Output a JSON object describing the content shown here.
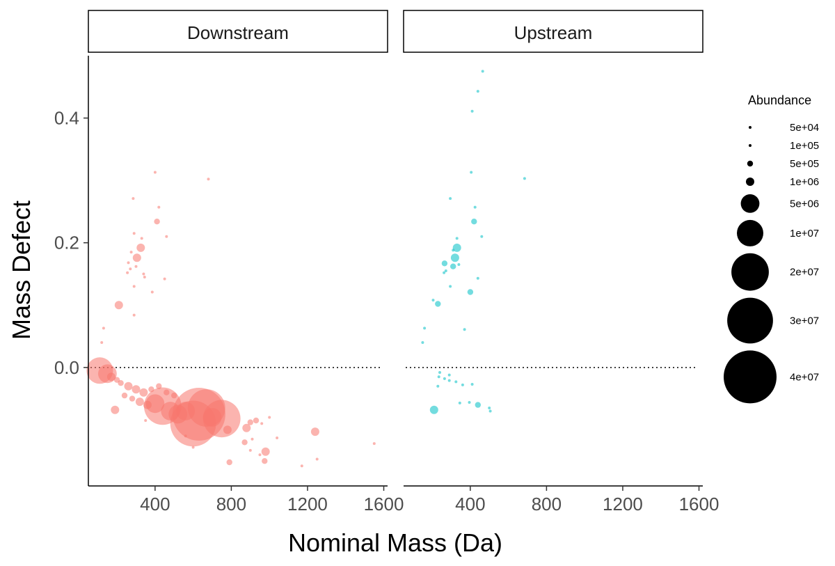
{
  "chart_data": {
    "type": "scatter",
    "xlabel": "Nominal Mass (Da)",
    "ylabel": "Mass Defect",
    "xlim": [
      50,
      1620
    ],
    "ylim": [
      -0.19,
      0.5
    ],
    "xticks": [
      400,
      800,
      1200,
      1600
    ],
    "yticks": [
      0.0,
      0.2,
      0.4
    ],
    "ytick_labels": [
      "0.0",
      "0.2",
      "0.4"
    ],
    "reference_line": {
      "y": 0,
      "style": "dotted"
    },
    "legend": {
      "title": "Abundance",
      "position": "right",
      "entries": [
        {
          "label": "5e+04",
          "value": 50000
        },
        {
          "label": "1e+05",
          "value": 100000
        },
        {
          "label": "5e+05",
          "value": 500000
        },
        {
          "label": "1e+06",
          "value": 1000000
        },
        {
          "label": "5e+06",
          "value": 5000000
        },
        {
          "label": "1e+07",
          "value": 10000000
        },
        {
          "label": "2e+07",
          "value": 20000000
        },
        {
          "label": "3e+07",
          "value": 30000000
        },
        {
          "label": "4e+07",
          "value": 40000000
        }
      ]
    },
    "panels": [
      {
        "label": "Downstream",
        "color": "#F8766D",
        "points": [
          [
            400,
            0.313,
            50000
          ],
          [
            680,
            0.302,
            50000
          ],
          [
            285,
            0.271,
            50000
          ],
          [
            420,
            0.257,
            50000
          ],
          [
            410,
            0.234,
            500000
          ],
          [
            290,
            0.215,
            100000
          ],
          [
            330,
            0.207,
            50000
          ],
          [
            460,
            0.21,
            50000
          ],
          [
            325,
            0.192,
            1000000
          ],
          [
            275,
            0.185,
            50000
          ],
          [
            305,
            0.176,
            1000000
          ],
          [
            260,
            0.168,
            100000
          ],
          [
            300,
            0.162,
            100000
          ],
          [
            270,
            0.158,
            50000
          ],
          [
            255,
            0.152,
            50000
          ],
          [
            340,
            0.15,
            100000
          ],
          [
            345,
            0.145,
            50000
          ],
          [
            450,
            0.142,
            50000
          ],
          [
            290,
            0.13,
            50000
          ],
          [
            385,
            0.121,
            50000
          ],
          [
            210,
            0.1,
            1000000
          ],
          [
            130,
            0.063,
            50000
          ],
          [
            290,
            0.084,
            50000
          ],
          [
            120,
            0.04,
            50000
          ],
          [
            110,
            -0.005,
            10000000
          ],
          [
            150,
            -0.01,
            5000000
          ],
          [
            170,
            -0.015,
            1000000
          ],
          [
            200,
            -0.02,
            500000
          ],
          [
            220,
            -0.025,
            500000
          ],
          [
            260,
            -0.03,
            1000000
          ],
          [
            300,
            -0.035,
            1000000
          ],
          [
            340,
            -0.04,
            1000000
          ],
          [
            380,
            -0.035,
            500000
          ],
          [
            420,
            -0.03,
            500000
          ],
          [
            460,
            -0.04,
            500000
          ],
          [
            500,
            -0.045,
            500000
          ],
          [
            240,
            -0.045,
            500000
          ],
          [
            280,
            -0.05,
            500000
          ],
          [
            320,
            -0.055,
            1000000
          ],
          [
            360,
            -0.06,
            1000000
          ],
          [
            400,
            -0.058,
            5000000
          ],
          [
            440,
            -0.062,
            20000000
          ],
          [
            480,
            -0.07,
            5000000
          ],
          [
            520,
            -0.075,
            5000000
          ],
          [
            560,
            -0.07,
            5000000
          ],
          [
            600,
            -0.09,
            30000000
          ],
          [
            630,
            -0.075,
            40000000
          ],
          [
            670,
            -0.065,
            20000000
          ],
          [
            700,
            -0.08,
            5000000
          ],
          [
            750,
            -0.082,
            20000000
          ],
          [
            780,
            -0.1,
            1000000
          ],
          [
            190,
            -0.068,
            1000000
          ],
          [
            880,
            -0.097,
            1000000
          ],
          [
            900,
            -0.088,
            500000
          ],
          [
            930,
            -0.085,
            500000
          ],
          [
            960,
            -0.09,
            100000
          ],
          [
            1000,
            -0.08,
            100000
          ],
          [
            870,
            -0.12,
            500000
          ],
          [
            910,
            -0.115,
            100000
          ],
          [
            1040,
            -0.113,
            100000
          ],
          [
            1240,
            -0.103,
            1000000
          ],
          [
            950,
            -0.14,
            100000
          ],
          [
            980,
            -0.135,
            1000000
          ],
          [
            975,
            -0.15,
            500000
          ],
          [
            790,
            -0.152,
            500000
          ],
          [
            900,
            -0.133,
            100000
          ],
          [
            1170,
            -0.158,
            100000
          ],
          [
            1250,
            -0.147,
            50000
          ],
          [
            1550,
            -0.122,
            50000
          ],
          [
            350,
            -0.085,
            100000
          ],
          [
            600,
            -0.128,
            100000
          ],
          [
            560,
            -0.11,
            100000
          ]
        ]
      },
      {
        "label": "Upstream",
        "color": "#00BFC4",
        "points": [
          [
            465,
            0.475,
            100000
          ],
          [
            440,
            0.443,
            100000
          ],
          [
            410,
            0.411,
            100000
          ],
          [
            405,
            0.313,
            100000
          ],
          [
            685,
            0.303,
            100000
          ],
          [
            295,
            0.271,
            50000
          ],
          [
            425,
            0.257,
            50000
          ],
          [
            420,
            0.234,
            500000
          ],
          [
            460,
            0.21,
            50000
          ],
          [
            330,
            0.207,
            50000
          ],
          [
            330,
            0.192,
            1000000
          ],
          [
            310,
            0.188,
            100000
          ],
          [
            320,
            0.176,
            1000000
          ],
          [
            265,
            0.167,
            500000
          ],
          [
            310,
            0.162,
            500000
          ],
          [
            340,
            0.165,
            100000
          ],
          [
            272,
            0.155,
            100000
          ],
          [
            262,
            0.152,
            50000
          ],
          [
            440,
            0.143,
            50000
          ],
          [
            295,
            0.13,
            50000
          ],
          [
            400,
            0.121,
            500000
          ],
          [
            205,
            0.108,
            100000
          ],
          [
            230,
            0.102,
            500000
          ],
          [
            160,
            0.063,
            100000
          ],
          [
            370,
            0.061,
            50000
          ],
          [
            150,
            0.04,
            100000
          ],
          [
            240,
            -0.008,
            50000
          ],
          [
            235,
            -0.015,
            50000
          ],
          [
            265,
            -0.018,
            50000
          ],
          [
            290,
            -0.012,
            50000
          ],
          [
            325,
            -0.023,
            100000
          ],
          [
            360,
            -0.028,
            100000
          ],
          [
            410,
            -0.027,
            100000
          ],
          [
            230,
            -0.03,
            50000
          ],
          [
            290,
            -0.021,
            50000
          ],
          [
            210,
            -0.068,
            1000000
          ],
          [
            345,
            -0.057,
            50000
          ],
          [
            395,
            -0.056,
            100000
          ],
          [
            440,
            -0.06,
            500000
          ],
          [
            500,
            -0.065,
            100000
          ],
          [
            505,
            -0.07,
            50000
          ]
        ]
      }
    ]
  }
}
